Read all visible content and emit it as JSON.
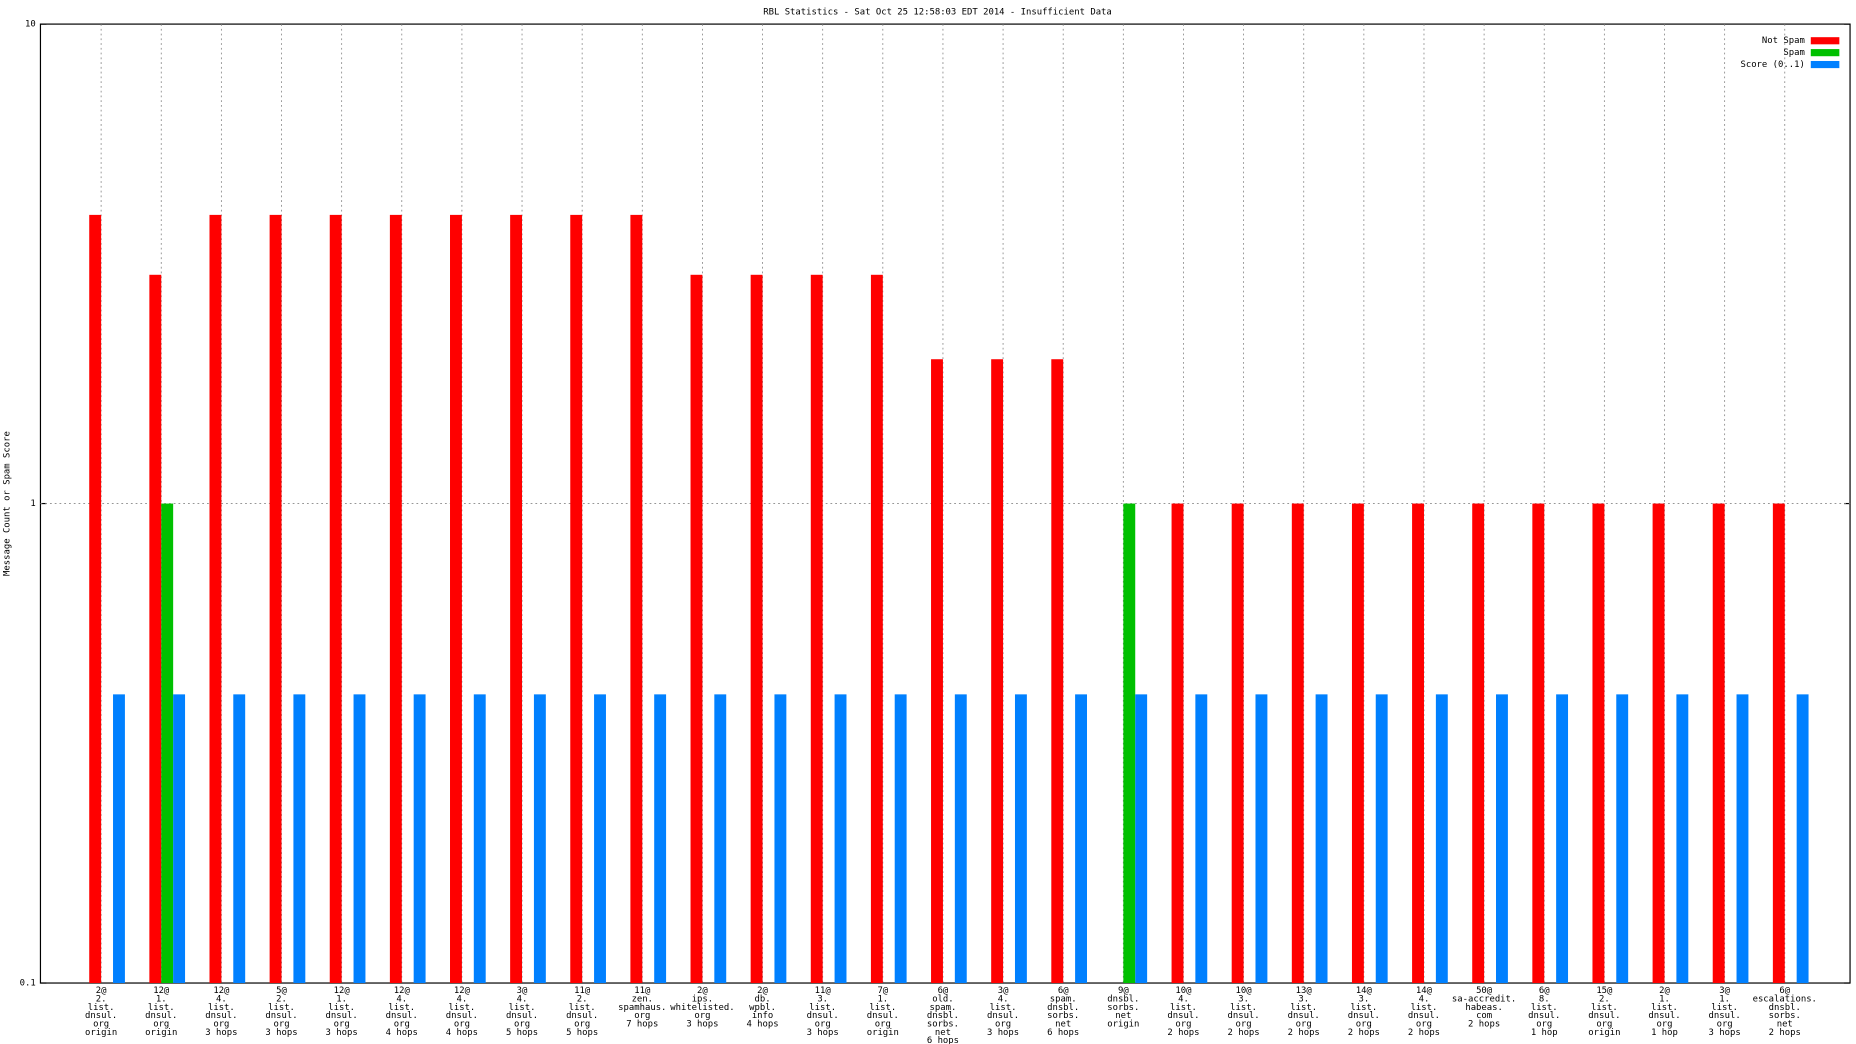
{
  "chart_data": {
    "type": "bar",
    "title": "RBL Statistics - Sat Oct 25 12:58:03 EDT 2014 - Insufficient Data",
    "y_label": "Message Count or Spam Score",
    "log_scale": true,
    "grid": true,
    "legend_position": "top-right",
    "ylim": [
      0.1,
      10
    ],
    "yticks": [
      0.1,
      1,
      10
    ],
    "categories": [
      "2@\n2.\nlist.\ndnsul.\norg\norigin",
      "12@\n1.\nlist.\ndnsul.\norg\norigin",
      "12@\n4.\nlist.\ndnsul.\norg\n3 hops",
      "5@\n2.\nlist.\ndnsul.\norg\n3 hops",
      "12@\n1.\nlist.\ndnsul.\norg\n3 hops",
      "12@\n4.\nlist.\ndnsul.\norg\n4 hops",
      "12@\n4.\nlist.\ndnsul.\norg\n4 hops",
      "3@\n4.\nlist.\ndnsul.\norg\n5 hops",
      "11@\n2.\nlist.\ndnsul.\norg\n5 hops",
      "11@\nzen.\nspamhaus.\norg\n7 hops",
      "2@\nips.\nwhitelisted.\norg\n3 hops",
      "2@\ndb.\nwpbl.\ninfo\n4 hops",
      "11@\n3.\nlist.\ndnsul.\norg\n3 hops",
      "7@\n1.\nlist.\ndnsul.\norg\norigin",
      "6@\nold.\nspam.\ndnsbl.\nsorbs.\nnet\n6 hops",
      "3@\n4.\nlist.\ndnsul.\norg\n3 hops",
      "6@\nspam.\ndnsbl.\nsorbs.\nnet\n6 hops",
      "9@\ndnsbl.\nsorbs.\nnet\norigin",
      "10@\n4.\nlist.\ndnsul.\norg\n2 hops",
      "10@\n3.\nlist.\ndnsul.\norg\n2 hops",
      "13@\n3.\nlist.\ndnsul.\norg\n2 hops",
      "14@\n3.\nlist.\ndnsul.\norg\n2 hops",
      "14@\n4.\nlist.\ndnsul.\norg\n2 hops",
      "50@\nsa-accredit.\nhabeas.\ncom\n2 hops",
      "6@\n8.\nlist.\ndnsul.\norg\n1 hop",
      "15@\n2.\nlist.\ndnsul.\norg\norigin",
      "2@\n1.\nlist.\ndnsul.\norg\n1 hop",
      "3@\n1.\nlist.\ndnsul.\norg\n3 hops",
      "6@\nescalations.\ndnsbl.\nsorbs.\nnet\n2 hops"
    ],
    "series": [
      {
        "name": "Not Spam",
        "color": "#ff0000",
        "values": [
          4,
          3,
          4,
          4,
          4,
          4,
          4,
          4,
          4,
          4,
          3,
          3,
          3,
          3,
          2,
          2,
          2,
          null,
          1,
          1,
          1,
          1,
          1,
          1,
          1,
          1,
          1,
          1,
          1
        ]
      },
      {
        "name": "Spam",
        "color": "#00c000",
        "values": [
          null,
          1,
          null,
          null,
          null,
          null,
          null,
          null,
          null,
          null,
          null,
          null,
          null,
          null,
          null,
          null,
          null,
          1,
          null,
          null,
          null,
          null,
          null,
          null,
          null,
          null,
          null,
          null,
          null
        ]
      },
      {
        "name": "Score (0..1)",
        "color": "#0080ff",
        "values": [
          0.4,
          0.4,
          0.4,
          0.4,
          0.4,
          0.4,
          0.4,
          0.4,
          0.4,
          0.4,
          0.4,
          0.4,
          0.4,
          0.4,
          0.4,
          0.4,
          0.4,
          0.4,
          0.4,
          0.4,
          0.4,
          0.4,
          0.4,
          0.4,
          0.4,
          0.4,
          0.4,
          0.4,
          0.4
        ]
      }
    ]
  }
}
